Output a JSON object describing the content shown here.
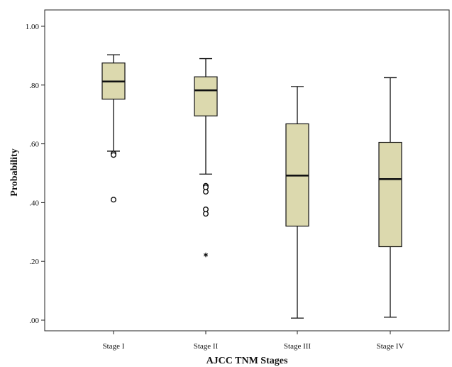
{
  "chart_data": {
    "type": "boxplot",
    "title": "",
    "xlabel": "AJCC TNM Stages",
    "ylabel": "Probability",
    "ylim": [
      0,
      1.0
    ],
    "y_ticks": [
      {
        "value": 1.0,
        "label": "1.00"
      },
      {
        "value": 0.8,
        "label": ".80"
      },
      {
        "value": 0.6,
        "label": ".60"
      },
      {
        "value": 0.4,
        "label": ".40"
      },
      {
        "value": 0.2,
        "label": ".20"
      },
      {
        "value": 0.0,
        "label": ".00"
      }
    ],
    "grid": false,
    "box_fill": "#dcd9ae",
    "categories": [
      "Stage I",
      "Stage II",
      "Stage III",
      "Stage IV"
    ],
    "boxes": [
      {
        "whisker_low": 0.575,
        "q1": 0.752,
        "median": 0.812,
        "q3": 0.875,
        "whisker_high": 0.903,
        "outliers": [
          0.567,
          0.562,
          0.41
        ],
        "extremes": []
      },
      {
        "whisker_low": 0.497,
        "q1": 0.695,
        "median": 0.782,
        "q3": 0.828,
        "whisker_high": 0.89,
        "outliers": [
          0.457,
          0.452,
          0.437,
          0.377,
          0.362
        ],
        "extremes": [
          0.222
        ]
      },
      {
        "whisker_low": 0.007,
        "q1": 0.32,
        "median": 0.492,
        "q3": 0.668,
        "whisker_high": 0.795,
        "outliers": [],
        "extremes": []
      },
      {
        "whisker_low": 0.01,
        "q1": 0.25,
        "median": 0.48,
        "q3": 0.605,
        "whisker_high": 0.825,
        "outliers": [],
        "extremes": []
      }
    ]
  }
}
